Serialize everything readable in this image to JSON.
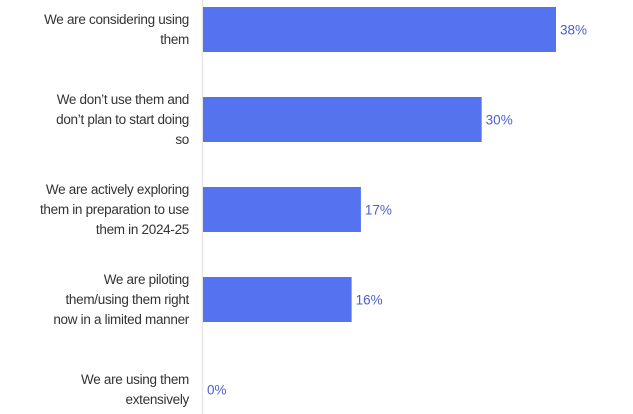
{
  "chart_data": {
    "type": "bar",
    "orientation": "horizontal",
    "categories": [
      [
        "We are considering using",
        "them"
      ],
      [
        "We don’t use them and",
        "don’t plan to start doing",
        "so"
      ],
      [
        "We are actively exploring",
        "them in preparation to use",
        "them in 2024-25"
      ],
      [
        "We are piloting",
        "them/using them right",
        "now in a limited manner"
      ],
      [
        "We are using them",
        "extensively"
      ]
    ],
    "values": [
      38,
      30,
      17,
      16,
      0
    ],
    "value_labels": [
      "38%",
      "30%",
      "17%",
      "16%",
      "0%"
    ],
    "unit": "%",
    "xlim": [
      0,
      45
    ],
    "grid": false,
    "colors": {
      "bar": "#5573ef",
      "label": "#4a5fcf",
      "axis": "#e6e6e6"
    }
  }
}
